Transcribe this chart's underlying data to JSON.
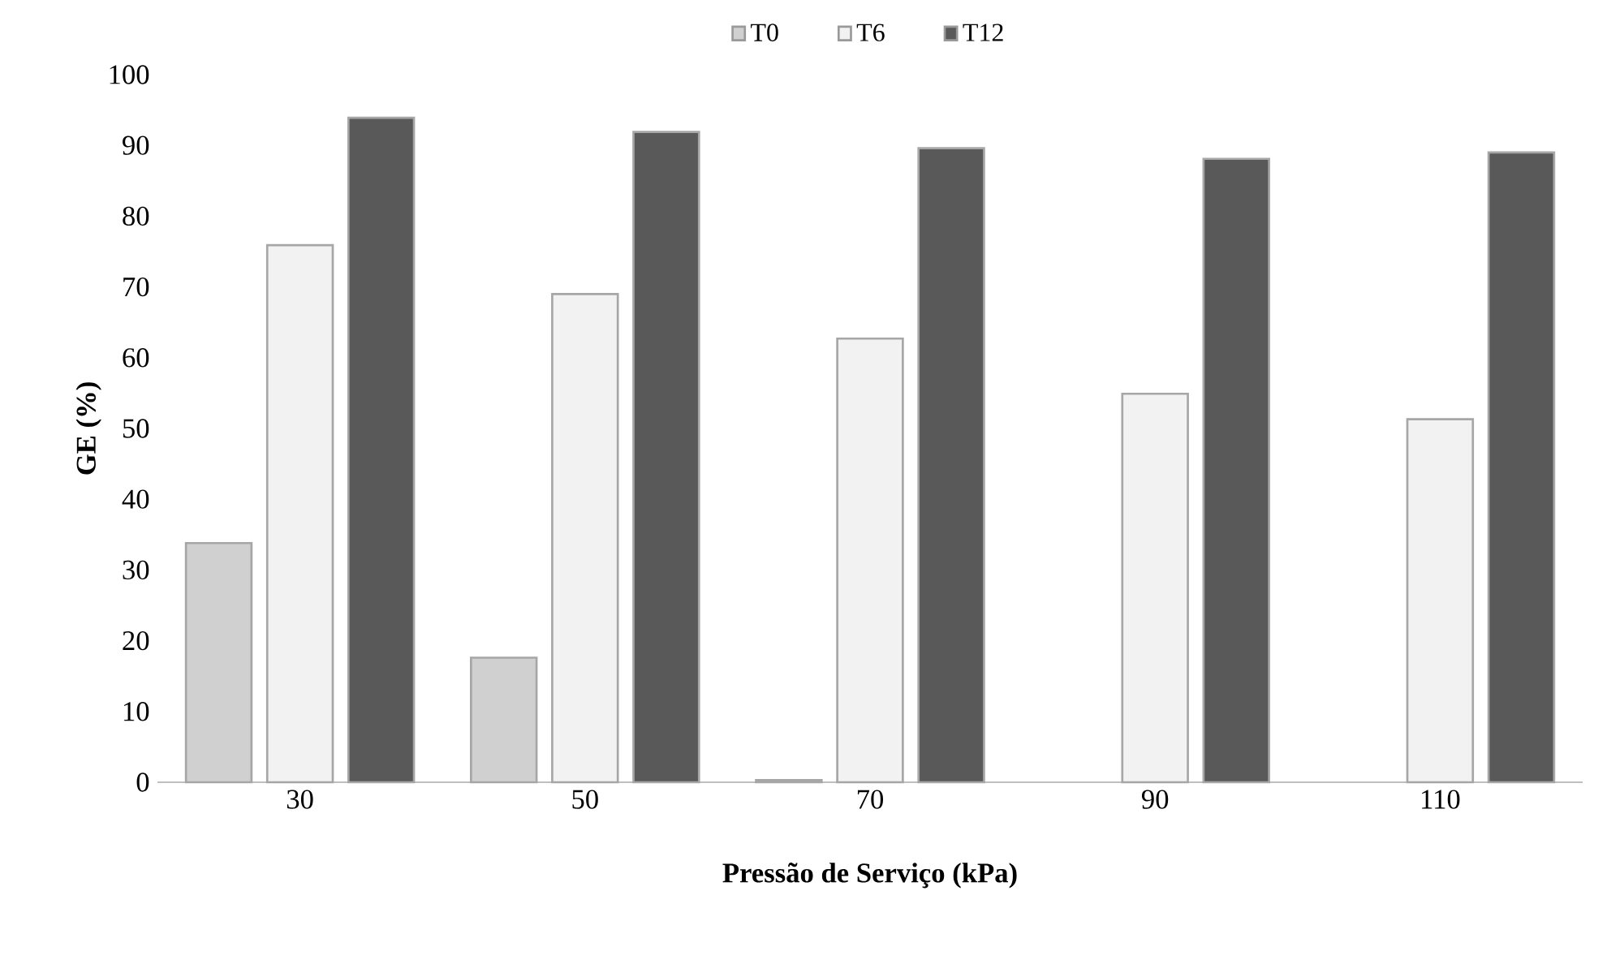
{
  "chart_data": {
    "type": "bar",
    "xlabel": "Pressão de Serviço (kPa)",
    "ylabel": "GE (%)",
    "categories": [
      "30",
      "50",
      "70",
      "90",
      "110"
    ],
    "series": [
      {
        "name": "T0",
        "color": "#d0d0d0",
        "values": [
          33.8,
          17.6,
          0.3,
          0,
          0
        ]
      },
      {
        "name": "T6",
        "color": "#f2f2f2",
        "values": [
          75.9,
          69.0,
          62.7,
          54.9,
          51.3
        ]
      },
      {
        "name": "T12",
        "color": "#595959",
        "values": [
          93.9,
          91.9,
          89.6,
          88.1,
          89.0
        ]
      }
    ],
    "ylim": [
      0,
      100
    ],
    "yticks": [
      0,
      10,
      20,
      30,
      40,
      50,
      60,
      70,
      80,
      90,
      100
    ],
    "legend": "top"
  }
}
